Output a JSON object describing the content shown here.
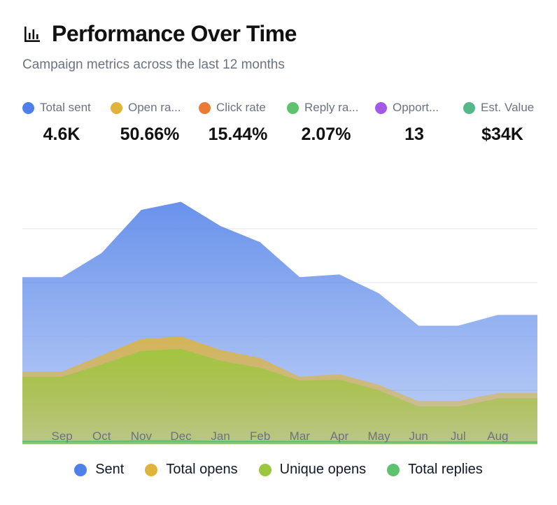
{
  "header": {
    "title": "Performance Over Time",
    "subtitle": "Campaign metrics across the last 12 months",
    "icon": "bar-chart-icon"
  },
  "metrics": [
    {
      "label": "Total sent",
      "value": "4.6K",
      "color": "#4f7fe8"
    },
    {
      "label": "Open ra...",
      "value": "50.66%",
      "color": "#e0b43a"
    },
    {
      "label": "Click rate",
      "value": "15.44%",
      "color": "#ea7a35"
    },
    {
      "label": "Reply ra...",
      "value": "2.07%",
      "color": "#5fc26e"
    },
    {
      "label": "Opport...",
      "value": "13",
      "color": "#a25ae6"
    },
    {
      "label": "Est. Value",
      "value": "$34K",
      "color": "#55b888"
    }
  ],
  "chart_data": {
    "type": "area",
    "categories": [
      "Sep",
      "Oct",
      "Nov",
      "Dec",
      "Jan",
      "Feb",
      "Mar",
      "Apr",
      "May",
      "Jun",
      "Jul",
      "Aug"
    ],
    "x_points": [
      "",
      "Sep",
      "Oct",
      "Nov",
      "Dec",
      "Jan",
      "Feb",
      "Mar",
      "Apr",
      "May",
      "Jun",
      "Jul",
      "Aug",
      ""
    ],
    "ylim": [
      0,
      500
    ],
    "grid": true,
    "legend_position": "bottom",
    "series": [
      {
        "name": "Sent",
        "color": "#4f7fe8",
        "values": [
          310,
          355,
          435,
          450,
          405,
          375,
          310,
          315,
          280,
          220,
          220,
          240
        ]
      },
      {
        "name": "Total opens",
        "color": "#e0b43a",
        "values": [
          135,
          165,
          195,
          200,
          175,
          160,
          125,
          130,
          110,
          80,
          80,
          95
        ]
      },
      {
        "name": "Unique opens",
        "color": "#9ac73d",
        "values": [
          125,
          148,
          173,
          177,
          155,
          142,
          118,
          120,
          100,
          70,
          70,
          85
        ]
      },
      {
        "name": "Total replies",
        "color": "#5fc26e",
        "values": [
          5,
          5,
          6,
          6,
          5,
          5,
          5,
          5,
          4,
          4,
          4,
          4
        ]
      }
    ]
  }
}
